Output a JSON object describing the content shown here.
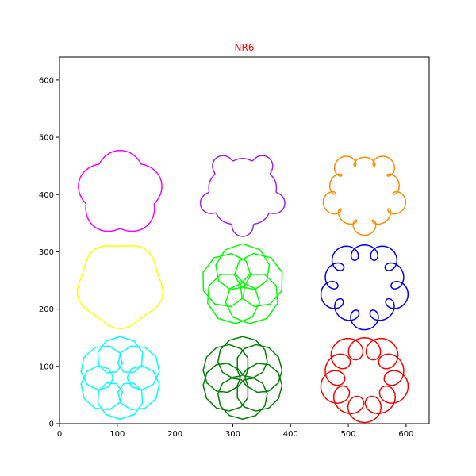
{
  "chart_data": {
    "type": "line",
    "title": "NR6",
    "title_color": "#ff0000",
    "xlabel": "",
    "ylabel": "",
    "xlim": [
      0,
      640
    ],
    "ylim": [
      0,
      640
    ],
    "x_ticks": [
      0,
      100,
      200,
      300,
      400,
      500,
      600
    ],
    "y_ticks": [
      0,
      100,
      200,
      300,
      400,
      500,
      600
    ],
    "grid": false,
    "legend": "none",
    "aspect": "equal",
    "series": [
      {
        "color": "#ff00ff",
        "center": [
          105,
          403
        ],
        "kind": "epitrochoid",
        "petals": 5,
        "base_radius": 68,
        "amplitude": 6,
        "orientation": "petal-up",
        "sides": 60
      },
      {
        "color": "#a020f0",
        "center": [
          317,
          403
        ],
        "kind": "epitrochoid-loops",
        "petals": 5,
        "base_radius": 68,
        "amplitude": 8,
        "loop_radius": 4,
        "orientation": "petal-up",
        "sides": 60
      },
      {
        "color": "#ff8c00",
        "center": [
          528,
          403
        ],
        "kind": "epitrochoid-loops",
        "petals": 5,
        "base_radius": 68,
        "amplitude": 6,
        "loop_radius": 9,
        "orientation": "petal-up",
        "sides": 60
      },
      {
        "color": "#ffff00",
        "center": [
          105,
          242
        ],
        "kind": "rounded-pentagon",
        "petals": 5,
        "base_radius": 72,
        "amplitude": 4,
        "orientation": "vertex-down",
        "sides": 80
      },
      {
        "color": "#00ff00",
        "center": [
          317,
          242
        ],
        "kind": "rosette",
        "petals": 5,
        "base_radius": 72,
        "loop_radius": 38,
        "sides": 10
      },
      {
        "color": "#0000ff",
        "center": [
          528,
          242
        ],
        "kind": "epitrochoid-loops",
        "petals": 5,
        "base_radius": 74,
        "amplitude": 4,
        "loop_radius": 14,
        "orientation": "petal-up",
        "sides": 16
      },
      {
        "color": "#00ffff",
        "center": [
          105,
          80
        ],
        "kind": "rosette",
        "petals": 6,
        "base_radius": 72,
        "loop_radius": 30,
        "sides": 10
      },
      {
        "color": "#008000",
        "center": [
          317,
          80
        ],
        "kind": "rosette",
        "petals": 6,
        "base_radius": 72,
        "loop_radius": 34,
        "sides": 12
      },
      {
        "color": "#ff0000",
        "center": [
          528,
          80
        ],
        "kind": "epitrochoid-loops",
        "petals": 5,
        "base_radius": 74,
        "amplitude": 4,
        "loop_radius": 20,
        "orientation": "petal-up",
        "sides": 12
      }
    ]
  }
}
